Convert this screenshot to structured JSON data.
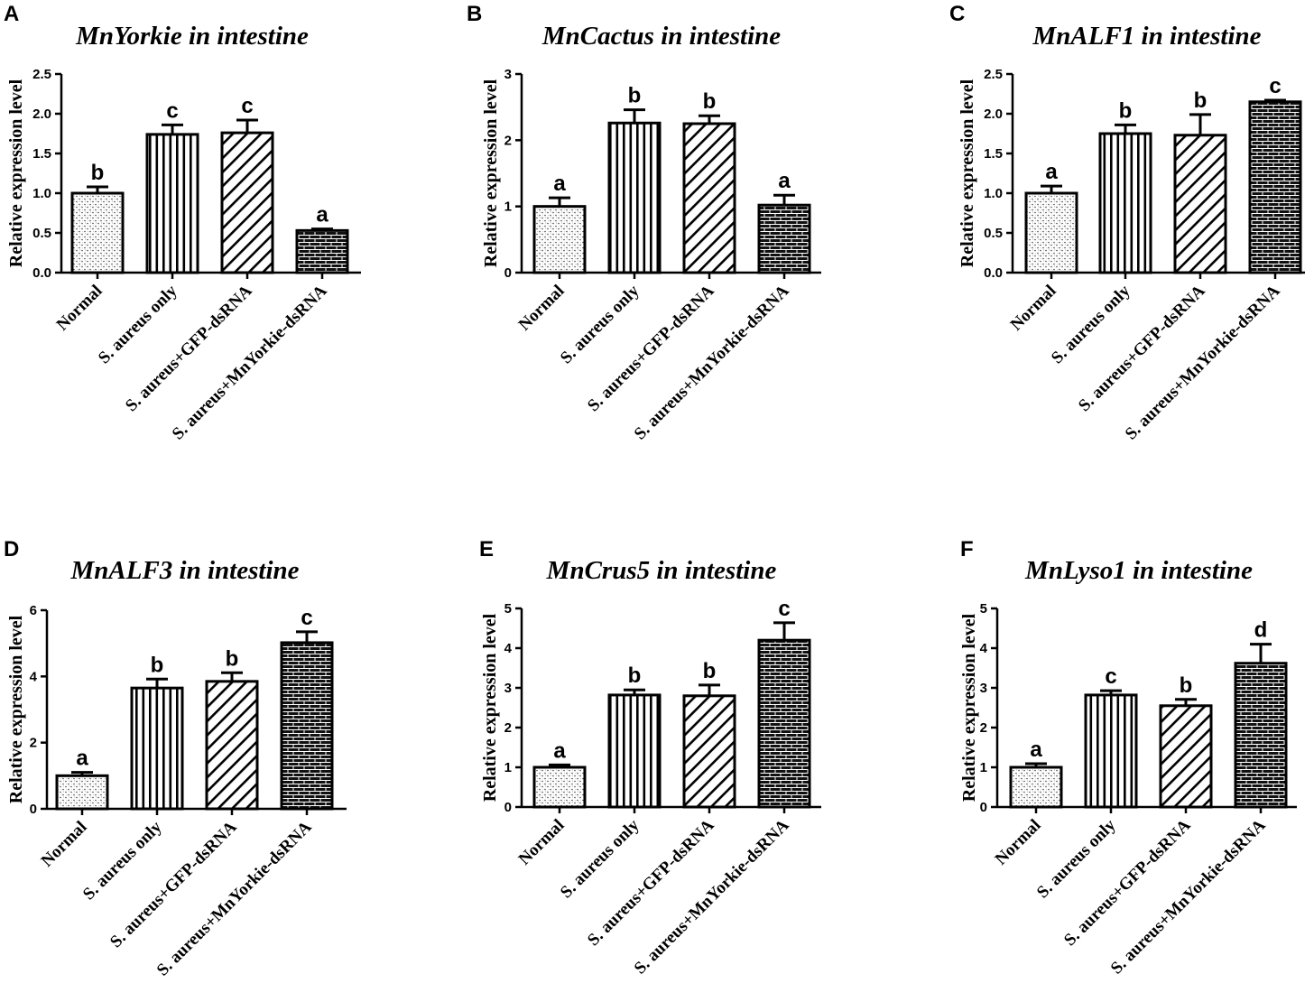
{
  "chart_data": [
    {
      "panel_label": "A",
      "type": "bar",
      "title": "MnYorkie in intestine",
      "xlabel": "",
      "ylabel": "Relative expression level",
      "categories": [
        "Normal",
        "S. aureus only",
        "S. aureus+GFP-dsRNA",
        "S. aureus+MnYorkie-dsRNA"
      ],
      "values": [
        1.0,
        1.74,
        1.76,
        0.53
      ],
      "errors": [
        0.08,
        0.12,
        0.16,
        0.02
      ],
      "significance": [
        "b",
        "c",
        "c",
        "a"
      ],
      "ylim": [
        0,
        2.5
      ],
      "yticks": [
        "0.0",
        "0.5",
        "1.0",
        "1.5",
        "2.0",
        "2.5"
      ]
    },
    {
      "panel_label": "B",
      "type": "bar",
      "title": "MnCactus in intestine",
      "xlabel": "",
      "ylabel": "Relative expression level",
      "categories": [
        "Normal",
        "S. aureus only",
        "S. aureus+GFP-dsRNA",
        "S. aureus+MnYorkie-dsRNA"
      ],
      "values": [
        1.0,
        2.26,
        2.25,
        1.02
      ],
      "errors": [
        0.13,
        0.2,
        0.12,
        0.15
      ],
      "significance": [
        "a",
        "b",
        "b",
        "a"
      ],
      "ylim": [
        0,
        3
      ],
      "yticks": [
        "0",
        "1",
        "2",
        "3"
      ]
    },
    {
      "panel_label": "C",
      "type": "bar",
      "title": "MnALF1 in intestine",
      "xlabel": "",
      "ylabel": "Relative expression level",
      "categories": [
        "Normal",
        "S. aureus only",
        "S. aureus+GFP-dsRNA",
        "S. aureus+MnYorkie-dsRNA"
      ],
      "values": [
        1.0,
        1.75,
        1.73,
        2.15
      ],
      "errors": [
        0.09,
        0.11,
        0.26,
        0.02
      ],
      "significance": [
        "a",
        "b",
        "b",
        "c"
      ],
      "ylim": [
        0,
        2.5
      ],
      "yticks": [
        "0.0",
        "0.5",
        "1.0",
        "1.5",
        "2.0",
        "2.5"
      ]
    },
    {
      "panel_label": "D",
      "type": "bar",
      "title": "MnALF3 in intestine",
      "xlabel": "",
      "ylabel": "Relative expression level",
      "categories": [
        "Normal",
        "S. aureus only",
        "S. aureus+GFP-dsRNA",
        "S. aureus+MnYorkie-dsRNA"
      ],
      "values": [
        1.0,
        3.65,
        3.85,
        5.02
      ],
      "errors": [
        0.1,
        0.27,
        0.26,
        0.33
      ],
      "significance": [
        "a",
        "b",
        "b",
        "c"
      ],
      "ylim": [
        0,
        6
      ],
      "yticks": [
        "0",
        "2",
        "4",
        "6"
      ]
    },
    {
      "panel_label": "E",
      "type": "bar",
      "title": "MnCrus5 in intestine",
      "xlabel": "",
      "ylabel": "Relative expression level",
      "categories": [
        "Normal",
        "S. aureus only",
        "S. aureus+GFP-dsRNA",
        "S. aureus+MnYorkie-dsRNA"
      ],
      "values": [
        1.0,
        2.82,
        2.8,
        4.2
      ],
      "errors": [
        0.06,
        0.13,
        0.27,
        0.44
      ],
      "significance": [
        "a",
        "b",
        "b",
        "c"
      ],
      "ylim": [
        0,
        5
      ],
      "yticks": [
        "0",
        "1",
        "2",
        "3",
        "4",
        "5"
      ]
    },
    {
      "panel_label": "F",
      "type": "bar",
      "title": "MnLyso1 in intestine",
      "xlabel": "",
      "ylabel": "Relative expression level",
      "categories": [
        "Normal",
        "S. aureus only",
        "S. aureus+GFP-dsRNA",
        "S. aureus+MnYorkie-dsRNA"
      ],
      "values": [
        1.0,
        2.82,
        2.55,
        3.62
      ],
      "errors": [
        0.09,
        0.11,
        0.16,
        0.48
      ],
      "significance": [
        "a",
        "c",
        "b",
        "d"
      ],
      "ylim": [
        0,
        5
      ],
      "yticks": [
        "0",
        "1",
        "2",
        "3",
        "4",
        "5"
      ]
    }
  ]
}
